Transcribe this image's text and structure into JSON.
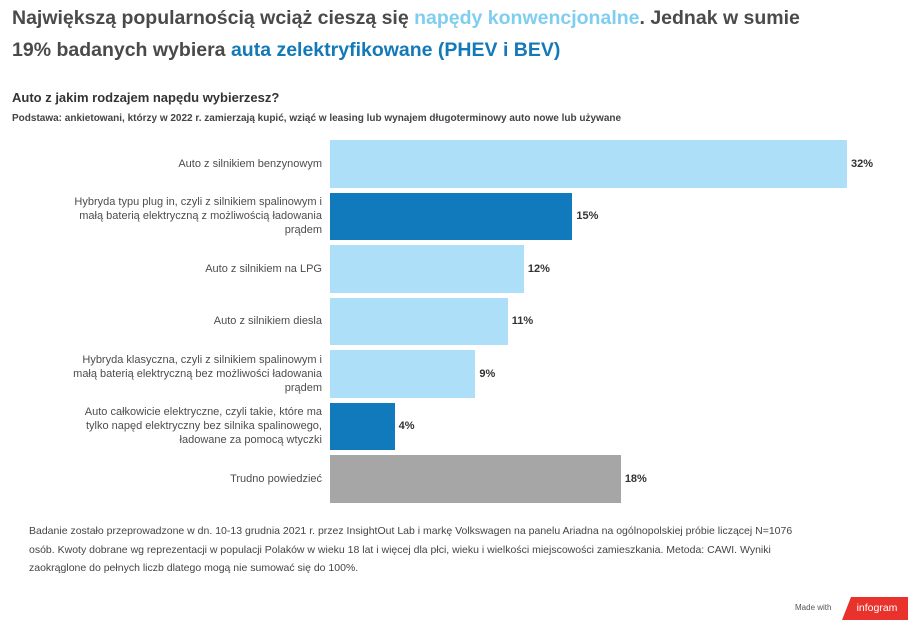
{
  "headline": {
    "line1_text": "Największą popularnością wciąż cieszą się ",
    "line1_highlight": "napędy konwencjonalne",
    "line1_end": ". Jednak w sumie",
    "line2_text": "19% badanych wybiera ",
    "line2_highlight": "auta zelektryfikowane (PHEV i BEV)"
  },
  "chart_data": {
    "type": "bar",
    "orientation": "horizontal",
    "title": "Auto z jakim rodzajem napędu wybierzesz?",
    "subtitle": "Podstawa: ankietowani, którzy w 2022 r. zamierzają kupić, wziąć w leasing lub wynajem długoterminowy auto nowe lub używane",
    "categories": [
      "Auto z silnikiem benzynowym",
      "Hybryda typu plug in, czyli z silnikiem spalinowym i\nmałą baterią elektryczną z możliwością ładowania\nprądem",
      "Auto z silnikiem na LPG",
      "Auto z silnikiem diesla",
      "Hybryda klasyczna, czyli z silnikiem spalinowym i\nmałą baterią elektryczną bez możliwości ładowania\nprądem",
      "Auto całkowicie elektryczne, czyli takie, które ma\ntylko napęd elektryczny bez silnika spalinowego,\nładowane za pomocą wtyczki",
      "Trudno powiedzieć"
    ],
    "values": [
      32,
      15,
      12,
      11,
      9,
      4,
      18
    ],
    "data_labels": [
      "32%",
      "15%",
      "12%",
      "11%",
      "9%",
      "4%",
      "18%"
    ],
    "unit": "%",
    "colors": [
      "#aedff8",
      "#117abc",
      "#aedff8",
      "#aedff8",
      "#aedff8",
      "#117abc",
      "#a6a6a6"
    ],
    "grid": false,
    "legend": "none"
  },
  "footnote": "Badanie zostało przeprowadzone w dn. 10-13 grudnia 2021 r. przez InsightOut Lab i markę Volkswagen na panelu Ariadna na ogólnopolskiej próbie liczącej N=1076\nosób. Kwoty dobrane wg reprezentacji w populacji Polaków w wieku 18 lat i więcej dla płci, wieku i wielkości miejscowości zamieszkania. Metoda: CAWI. Wyniki\nzaokrąglone do pełnych liczb dlatego mogą nie sumować się do 100%.",
  "branding": {
    "made_with": "Made with",
    "logo_text": "infogram"
  },
  "colors": {
    "highlight_conventional": "#7fcef0",
    "highlight_electrified": "#1479b8",
    "logo_red": "#e8322b"
  }
}
